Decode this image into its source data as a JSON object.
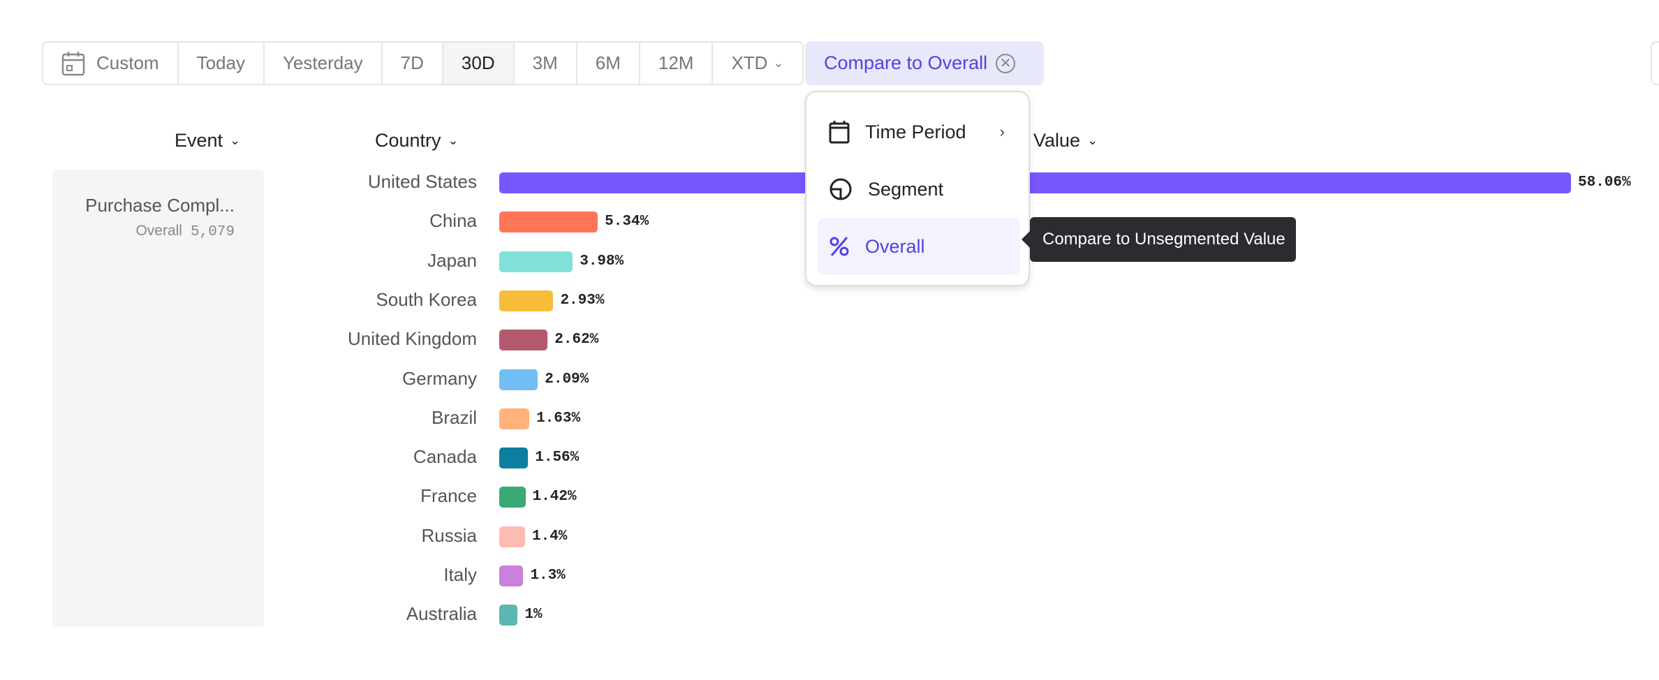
{
  "toolbar": {
    "ranges": [
      "Custom",
      "Today",
      "Yesterday",
      "7D",
      "30D",
      "3M",
      "6M",
      "12M",
      "XTD"
    ],
    "active": "30D",
    "compare_label": "Compare to Overall"
  },
  "headers": {
    "event": "Event",
    "country": "Country",
    "value": "Value"
  },
  "event": {
    "name": "Purchase Compl...",
    "sub_label": "Overall",
    "count": "5,079"
  },
  "menu": {
    "items": [
      {
        "label": "Time Period",
        "icon": "calendar-icon"
      },
      {
        "label": "Segment",
        "icon": "segment-icon"
      },
      {
        "label": "Overall",
        "icon": "percent-icon"
      }
    ],
    "selected": "Overall"
  },
  "tooltip": "Compare to Unsegmented Value",
  "chart_data": {
    "type": "bar",
    "orientation": "horizontal",
    "categories": [
      "United States",
      "China",
      "Japan",
      "South Korea",
      "United Kingdom",
      "Germany",
      "Brazil",
      "Canada",
      "France",
      "Russia",
      "Italy",
      "Australia"
    ],
    "values": [
      58.06,
      5.34,
      3.98,
      2.93,
      2.62,
      2.09,
      1.63,
      1.56,
      1.42,
      1.4,
      1.3,
      1
    ],
    "labels": [
      "58.06%",
      "5.34%",
      "3.98%",
      "2.93%",
      "2.62%",
      "2.09%",
      "1.63%",
      "1.56%",
      "1.42%",
      "1.4%",
      "1.3%",
      "1%"
    ],
    "colors": [
      "#7856FF",
      "#FF7557",
      "#80E1D9",
      "#F8BC3B",
      "#B2596E",
      "#72BEF4",
      "#FFB27A",
      "#0D7EA0",
      "#3BA974",
      "#FEBBB2",
      "#CA80DC",
      "#5BB7AF"
    ]
  }
}
